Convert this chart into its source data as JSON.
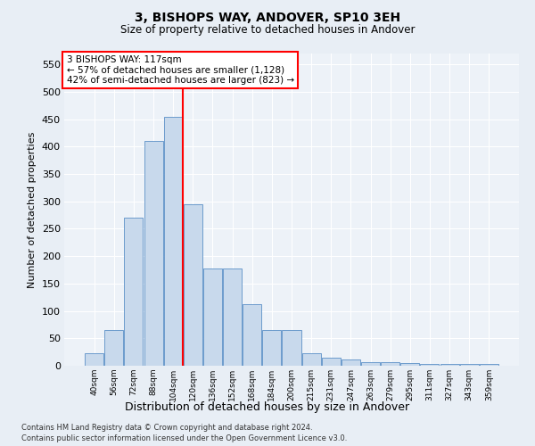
{
  "title1": "3, BISHOPS WAY, ANDOVER, SP10 3EH",
  "title2": "Size of property relative to detached houses in Andover",
  "xlabel": "Distribution of detached houses by size in Andover",
  "ylabel": "Number of detached properties",
  "footnote1": "Contains HM Land Registry data © Crown copyright and database right 2024.",
  "footnote2": "Contains public sector information licensed under the Open Government Licence v3.0.",
  "bar_color": "#c8d9ec",
  "bar_edge_color": "#5b8fc7",
  "vline_color": "red",
  "annotation_line1": "3 BISHOPS WAY: 117sqm",
  "annotation_line2": "← 57% of detached houses are smaller (1,128)",
  "annotation_line3": "42% of semi-detached houses are larger (823) →",
  "categories": [
    "40sqm",
    "56sqm",
    "72sqm",
    "88sqm",
    "104sqm",
    "120sqm",
    "136sqm",
    "152sqm",
    "168sqm",
    "184sqm",
    "200sqm",
    "215sqm",
    "231sqm",
    "247sqm",
    "263sqm",
    "279sqm",
    "295sqm",
    "311sqm",
    "327sqm",
    "343sqm",
    "359sqm"
  ],
  "values": [
    22,
    65,
    270,
    410,
    455,
    295,
    178,
    178,
    113,
    65,
    65,
    22,
    14,
    11,
    6,
    6,
    5,
    4,
    3,
    3,
    3
  ],
  "ylim": [
    0,
    570
  ],
  "yticks": [
    0,
    50,
    100,
    150,
    200,
    250,
    300,
    350,
    400,
    450,
    500,
    550
  ],
  "bg_color": "#e8eef5",
  "plot_bg_color": "#edf2f8",
  "grid_color": "white"
}
